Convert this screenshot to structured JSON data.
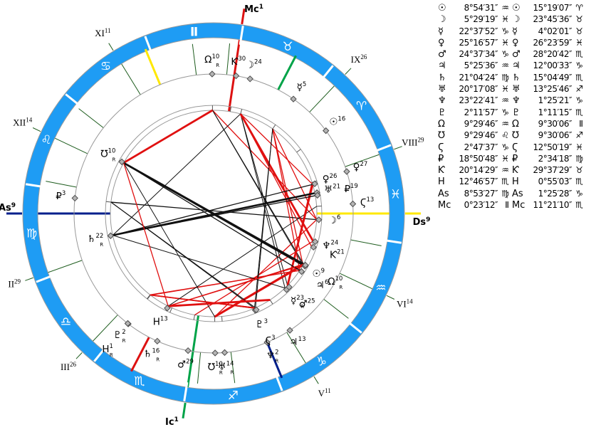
{
  "colors": {
    "band": "#1e9cf4",
    "band_edge": "#9a9a9a",
    "ring": "#999999",
    "cusp_green": "#1d5c1d",
    "axis_mc": "#dd1111",
    "axis_ic": "#00a348",
    "axis_as": "#001f8c",
    "axis_ds": "#ffe800",
    "aspect_hard": "#e01010",
    "aspect_dark": "#111111",
    "diamond_fill": "#b5b5b5",
    "diamond_edge": "#4d4d4d"
  },
  "signs": [
    {
      "name": "aries",
      "glyph": "♈"
    },
    {
      "name": "taurus",
      "glyph": "♉"
    },
    {
      "name": "gemini",
      "glyph": "Ⅱ"
    },
    {
      "name": "cancer",
      "glyph": "♋"
    },
    {
      "name": "leo",
      "glyph": "♌"
    },
    {
      "name": "virgo",
      "glyph": "♍"
    },
    {
      "name": "libra",
      "glyph": "♎"
    },
    {
      "name": "scorpio",
      "glyph": "♏"
    },
    {
      "name": "sagittarius",
      "glyph": "♐"
    },
    {
      "name": "capricorn",
      "glyph": "♑"
    },
    {
      "name": "aquarius",
      "glyph": "♒"
    },
    {
      "name": "pisces",
      "glyph": "♓"
    }
  ],
  "rows": [
    {
      "name": "sun",
      "glyph": "☉",
      "c1": {
        "val": "8°54′31″",
        "sign": "♒",
        "retro": false,
        "lon": 308.909
      },
      "c2": {
        "val": "15°19′07″",
        "sign": "♈",
        "retro": false,
        "lon": 15.319
      }
    },
    {
      "name": "moon",
      "glyph": "☽",
      "c1": {
        "val": "5°29′19″",
        "sign": "♓",
        "retro": false,
        "lon": 335.489
      },
      "c2": {
        "val": "23°45′36″",
        "sign": "♉",
        "retro": false,
        "lon": 53.76
      }
    },
    {
      "name": "mercury",
      "glyph": "☿",
      "c1": {
        "val": "22°37′52″",
        "sign": "♑",
        "retro": true,
        "lon": 292.631
      },
      "c2": {
        "val": "4°02′01″",
        "sign": "♉",
        "retro": false,
        "lon": 34.034
      }
    },
    {
      "name": "venus",
      "glyph": "♀",
      "c1": {
        "val": "25°16′57″",
        "sign": "♓",
        "retro": false,
        "lon": 355.283
      },
      "c2": {
        "val": "26°23′59″",
        "sign": "♓",
        "retro": false,
        "lon": 356.4
      }
    },
    {
      "name": "mars",
      "glyph": "♂",
      "c1": {
        "val": "24°37′34″",
        "sign": "♑",
        "retro": false,
        "lon": 294.626
      },
      "c2": {
        "val": "28°20′42″",
        "sign": "♏",
        "retro": false,
        "lon": 238.345
      }
    },
    {
      "name": "jupiter",
      "glyph": "♃",
      "c1": {
        "val": "5°25′36″",
        "sign": "♒",
        "retro": false,
        "lon": 305.427
      },
      "c2": {
        "val": "12°00′33″",
        "sign": "♑",
        "retro": false,
        "lon": 282.009
      }
    },
    {
      "name": "saturn",
      "glyph": "♄",
      "c1": {
        "val": "21°04′24″",
        "sign": "♍",
        "retro": true,
        "lon": 171.073
      },
      "c2": {
        "val": "15°04′49″",
        "sign": "♏",
        "retro": true,
        "lon": 225.08
      }
    },
    {
      "name": "uranus",
      "glyph": "♅",
      "c1": {
        "val": "20°17′08″",
        "sign": "♓",
        "retro": false,
        "lon": 350.286
      },
      "c2": {
        "val": "13°25′46″",
        "sign": "♐",
        "retro": true,
        "lon": 253.429
      }
    },
    {
      "name": "neptune",
      "glyph": "♆",
      "c1": {
        "val": "23°22′41″",
        "sign": "♒",
        "retro": false,
        "lon": 323.378
      },
      "c2": {
        "val": "1°25′21″",
        "sign": "♑",
        "retro": true,
        "lon": 271.422
      }
    },
    {
      "name": "pluto",
      "glyph": "♇",
      "c1": {
        "val": "2°11′57″",
        "sign": "♑",
        "retro": false,
        "lon": 272.199
      },
      "c2": {
        "val": "1°11′15″",
        "sign": "♏",
        "retro": true,
        "lon": 211.188
      }
    },
    {
      "name": "north-node",
      "glyph": "Ω",
      "c1": {
        "val": "9°29′46″",
        "sign": "♒",
        "retro": true,
        "lon": 309.496
      },
      "c2": {
        "val": "9°30′06″",
        "sign": "Ⅱ",
        "retro": true,
        "lon": 69.502
      }
    },
    {
      "name": "south-node",
      "glyph": "℧",
      "c1": {
        "val": "9°29′46″",
        "sign": "♌",
        "retro": true,
        "lon": 129.496
      },
      "c2": {
        "val": "9°30′06″",
        "sign": "♐",
        "retro": true,
        "lon": 249.502
      }
    },
    {
      "name": "lilith-black-moon",
      "glyph": "Ϛ",
      "c1": {
        "val": "2°47′37″",
        "sign": "♑",
        "retro": false,
        "lon": 272.794
      },
      "c2": {
        "val": "12°50′19″",
        "sign": "♓",
        "retro": false,
        "lon": 342.839
      }
    },
    {
      "name": "selena-white-moon",
      "glyph": "₽",
      "c1": {
        "val": "18°50′48″",
        "sign": "♓",
        "retro": false,
        "lon": 348.847
      },
      "c2": {
        "val": "2°34′18″",
        "sign": "♍",
        "retro": false,
        "lon": 152.572
      }
    },
    {
      "name": "chiron",
      "glyph": "Ƙ",
      "c1": {
        "val": "20°14′29″",
        "sign": "♒",
        "retro": false,
        "lon": 320.241
      },
      "c2": {
        "val": "29°37′29″",
        "sign": "♉",
        "retro": false,
        "lon": 59.625
      }
    },
    {
      "name": "h-object",
      "glyph": "H",
      "c1": {
        "val": "12°46′57″",
        "sign": "♏",
        "retro": false,
        "lon": 222.783
      },
      "c2": {
        "val": "0°55′03″",
        "sign": "♏",
        "retro": true,
        "lon": 210.918
      }
    },
    {
      "name": "ascendant",
      "glyph": "As",
      "c1": {
        "val": "8°53′27″",
        "sign": "♍",
        "retro": false,
        "lon": 158.891
      },
      "c2": {
        "val": "1°25′28″",
        "sign": "♑",
        "retro": false,
        "lon": 271.424
      }
    },
    {
      "name": "midheaven",
      "glyph": "Mc",
      "c1": {
        "val": "0°23′12″",
        "sign": "Ⅱ",
        "retro": false,
        "lon": 60.387
      },
      "c2": {
        "val": "11°21′10″",
        "sign": "♏",
        "retro": false,
        "lon": 221.353
      }
    }
  ],
  "axes1": [
    {
      "name": "mc",
      "label": "Mc",
      "sup": "1"
    },
    {
      "name": "ic",
      "label": "Ic",
      "sup": "1"
    },
    {
      "name": "as",
      "label": "As",
      "sup": "9"
    },
    {
      "name": "ds",
      "label": "Ds",
      "sup": "9"
    }
  ],
  "houses1": [
    {
      "num": "XI",
      "deg": "11",
      "lon": 100.5
    },
    {
      "num": "XII",
      "deg": "14",
      "lon": 133.5
    },
    {
      "num": "II",
      "deg": "29",
      "lon": 178.5
    },
    {
      "num": "III",
      "deg": "26",
      "lon": 205.5
    },
    {
      "num": "V",
      "deg": "11",
      "lon": 280.5
    },
    {
      "num": "VI",
      "deg": "14",
      "lon": 313.5
    },
    {
      "num": "VIII",
      "deg": "29",
      "lon": 358.5
    },
    {
      "num": "IX",
      "deg": "26",
      "lon": 25.5
    }
  ],
  "houses2_lons": [
    243.5,
    256,
    301,
    328,
    63.5,
    76,
    121,
    148
  ]
}
